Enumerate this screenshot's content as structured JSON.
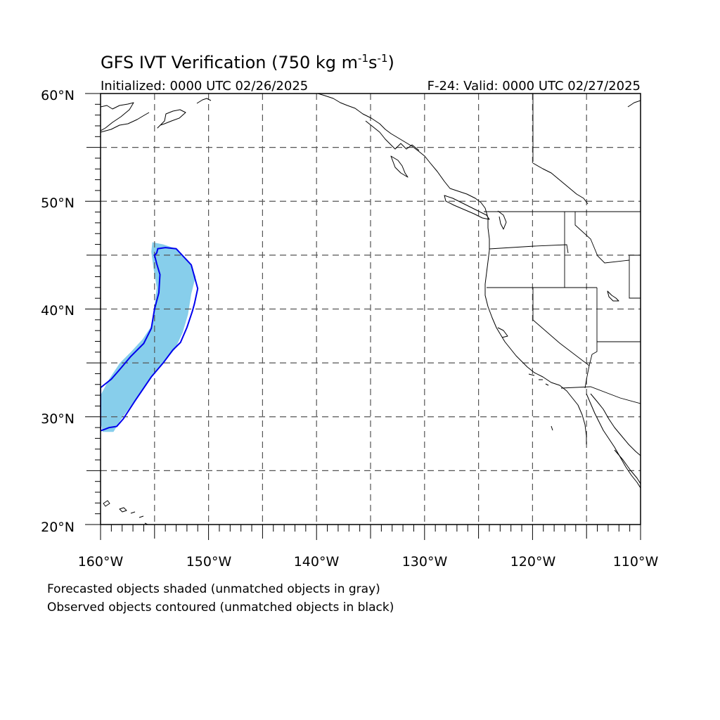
{
  "title": {
    "main": "GFS IVT Verification (750 kg m",
    "sup1": "-1",
    "mid": "s",
    "sup2": "-1",
    "end": ")"
  },
  "subtitle_left": "Initialized: 0000 UTC 02/26/2025",
  "subtitle_right": "F-24: Valid: 0000 UTC 02/27/2025",
  "axes": {
    "lon_range": [
      -160,
      -110
    ],
    "lat_range": [
      20,
      60
    ],
    "lon_labels": [
      "160°W",
      "150°W",
      "140°W",
      "130°W",
      "120°W",
      "110°W"
    ],
    "lat_labels": [
      "60°N",
      "50°N",
      "40°N",
      "30°N",
      "20°N"
    ],
    "grid_lon_step": 5,
    "grid_lat_step": 5
  },
  "notes": {
    "line1": "Forecasted objects shaded (unmatched objects in gray)",
    "line2": "Observed objects contoured (unmatched objects in black)"
  },
  "colors": {
    "forecast_fill": "#87CEEB",
    "observed_contour": "#0000EE",
    "grid": "#555555",
    "coast": "#000000"
  },
  "forecast_object": [
    [
      -155.2,
      46.2
    ],
    [
      -154.2,
      46.0
    ],
    [
      -153.0,
      45.6
    ],
    [
      -151.8,
      44.4
    ],
    [
      -151.2,
      43.0
    ],
    [
      -151.6,
      41.4
    ],
    [
      -151.9,
      39.5
    ],
    [
      -152.4,
      37.8
    ],
    [
      -153.1,
      36.3
    ],
    [
      -154.3,
      34.9
    ],
    [
      -155.8,
      33.0
    ],
    [
      -157.2,
      31.0
    ],
    [
      -158.2,
      29.6
    ],
    [
      -158.8,
      28.6
    ],
    [
      -159.8,
      28.6
    ],
    [
      -160.0,
      29.5
    ],
    [
      -160.0,
      32.0
    ],
    [
      -159.2,
      33.5
    ],
    [
      -158.2,
      35.0
    ],
    [
      -157.2,
      36.0
    ],
    [
      -156.1,
      37.2
    ],
    [
      -155.3,
      38.4
    ],
    [
      -155.0,
      40.2
    ],
    [
      -154.8,
      42.0
    ],
    [
      -155.1,
      43.8
    ],
    [
      -155.3,
      45.3
    ]
  ],
  "observed_object": [
    [
      -154.8,
      45.2
    ],
    [
      -154.7,
      45.6
    ],
    [
      -154.0,
      45.7
    ],
    [
      -153.0,
      45.6
    ],
    [
      -151.6,
      44.1
    ],
    [
      -151.0,
      41.9
    ],
    [
      -151.3,
      40.5
    ],
    [
      -151.5,
      39.8
    ],
    [
      -152.0,
      38.3
    ],
    [
      -152.6,
      36.9
    ],
    [
      -153.3,
      36.2
    ],
    [
      -154.2,
      35.0
    ],
    [
      -155.3,
      33.7
    ],
    [
      -156.8,
      31.5
    ],
    [
      -157.9,
      29.8
    ],
    [
      -158.5,
      29.1
    ],
    [
      -159.2,
      29.0
    ],
    [
      -159.7,
      28.8
    ],
    [
      -160.0,
      28.7
    ],
    [
      -160.0,
      32.7
    ],
    [
      -159.0,
      33.5
    ],
    [
      -158.3,
      34.3
    ],
    [
      -157.2,
      35.6
    ],
    [
      -156.0,
      36.8
    ],
    [
      -155.3,
      38.2
    ],
    [
      -155.0,
      40.0
    ],
    [
      -154.6,
      41.5
    ],
    [
      -154.5,
      43.2
    ],
    [
      -154.8,
      44.2
    ],
    [
      -155.0,
      45.0
    ]
  ]
}
